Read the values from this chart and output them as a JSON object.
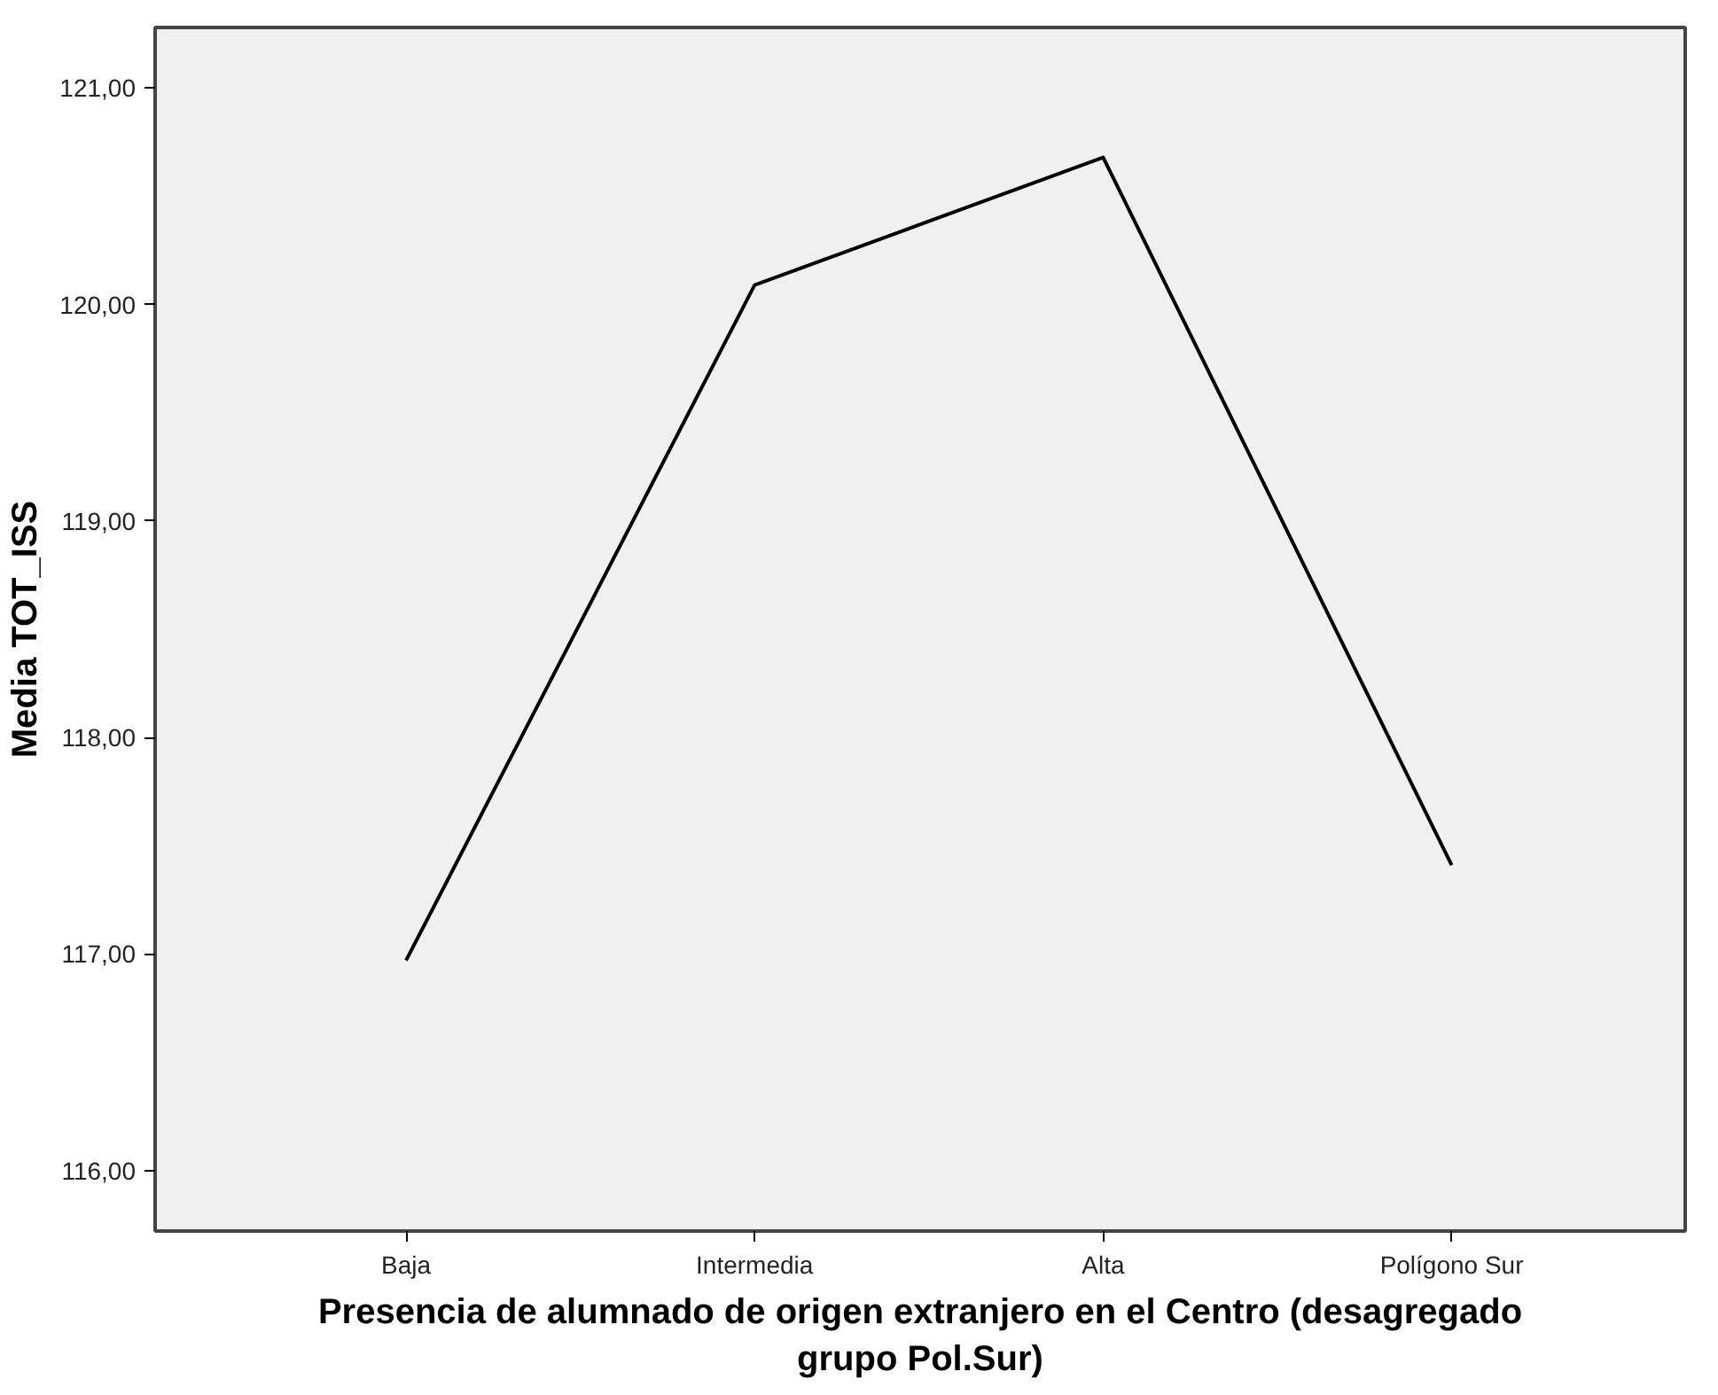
{
  "chart_data": {
    "type": "line",
    "xlabel": "Presencia de alumnado de origen extranjero en el Centro (desagregado grupo Pol.Sur)",
    "ylabel": "Media TOT_ISS",
    "categories": [
      "Baja",
      "Intermedia",
      "Alta",
      "Polígono Sur"
    ],
    "series": [
      {
        "color": "#000000",
        "values": [
          116.97,
          120.09,
          120.68,
          117.41
        ]
      }
    ],
    "ylim": [
      115.72,
      121.28
    ],
    "yticks": [
      {
        "value": 116,
        "label": "116,00"
      },
      {
        "value": 117,
        "label": "117,00"
      },
      {
        "value": 118,
        "label": "118,00"
      },
      {
        "value": 119,
        "label": "119,00"
      },
      {
        "value": 120,
        "label": "120,00"
      },
      {
        "value": 121,
        "label": "121,00"
      }
    ],
    "grid": false,
    "marker": "none",
    "line_style": "solid"
  }
}
